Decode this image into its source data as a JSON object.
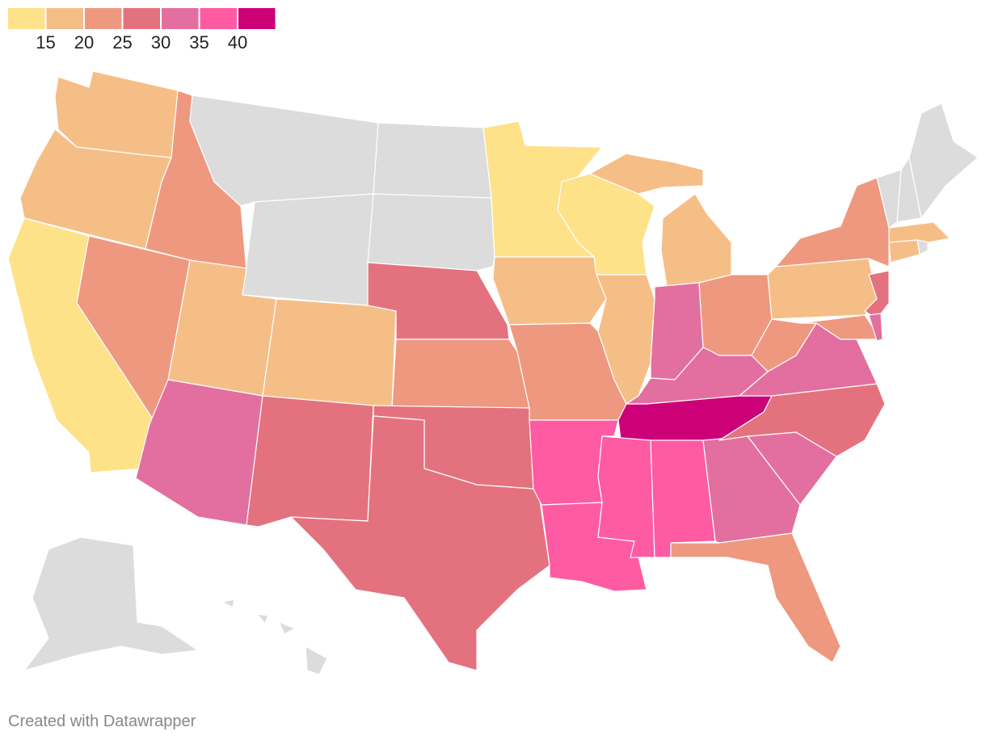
{
  "chart_data": {
    "type": "choropleth",
    "legend": {
      "colors": [
        "#fee28a",
        "#f6be87",
        "#ef9880",
        "#e4727e",
        "#e26f9f",
        "#fe5ba3",
        "#cc0077"
      ],
      "ticks": [
        15,
        20,
        25,
        30,
        35,
        40
      ]
    },
    "no_data_color": "#dcdcdc",
    "values": [
      17.5,
      17.5,
      12.5,
      22.5,
      22.5,
      null,
      null,
      17.5,
      32.5,
      17.5,
      27.5,
      null,
      null,
      27.5,
      22.5,
      27.5,
      27.5,
      12.5,
      17.5,
      22.5,
      37.5,
      37.5,
      12.5,
      17.5,
      17.5,
      32.5,
      22.5,
      32.5,
      42.5,
      37.5,
      37.5,
      32.5,
      22.5,
      32.5,
      27.5,
      32.5,
      22.5,
      17.5,
      22.5,
      27.5,
      22.5,
      32.5,
      17.5,
      null,
      17.5,
      null,
      null,
      null,
      null,
      null
    ],
    "credit": "Created with Datawrapper"
  }
}
